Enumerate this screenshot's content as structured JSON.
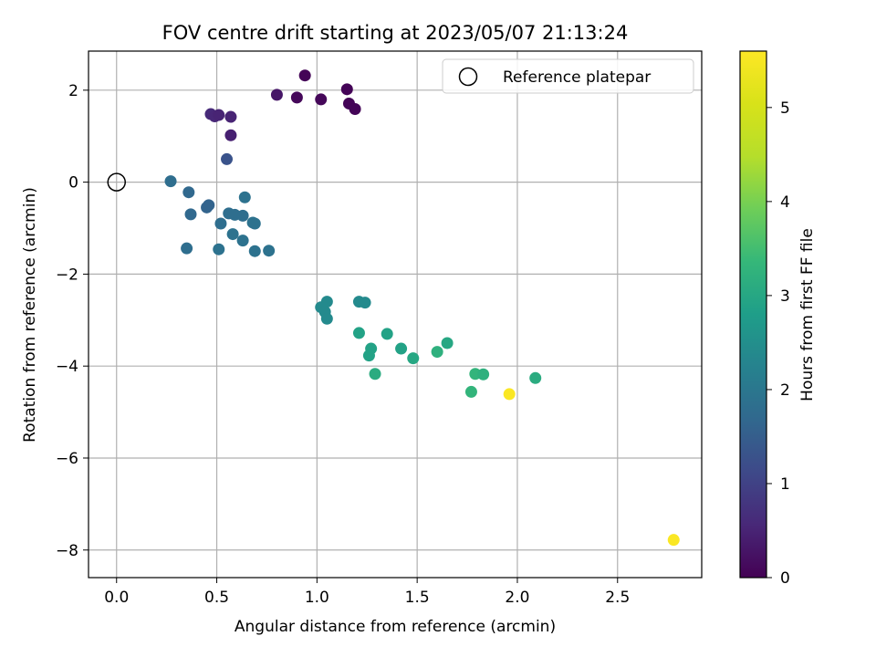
{
  "chart_data": {
    "type": "scatter",
    "title": "FOV centre drift starting at 2023/05/07 21:13:24",
    "xlabel": "Angular distance from reference (arcmin)",
    "ylabel": "Rotation from reference (arcmin)",
    "xlim": [
      -0.14,
      2.92
    ],
    "ylim": [
      -8.6,
      2.85
    ],
    "xticks": [
      0.0,
      0.5,
      1.0,
      1.5,
      2.0,
      2.5
    ],
    "xtick_labels": [
      "0.0",
      "0.5",
      "1.0",
      "1.5",
      "2.0",
      "2.5"
    ],
    "yticks": [
      2,
      0,
      -2,
      -4,
      -6,
      -8
    ],
    "ytick_labels": [
      "2",
      "0",
      "−2",
      "−4",
      "−6",
      "−8"
    ],
    "grid": true,
    "legend": {
      "entries": [
        "Reference platepar"
      ],
      "location": "upper-right"
    },
    "reference_point": {
      "x": 0.0,
      "y": 0.0
    },
    "colorbar": {
      "label": "Hours from first FF file",
      "colormap": "viridis",
      "range": [
        0,
        5.6
      ],
      "ticks": [
        0,
        1,
        2,
        3,
        4,
        5
      ],
      "tick_labels": [
        "0",
        "1",
        "2",
        "3",
        "4",
        "5"
      ]
    },
    "points": [
      {
        "x": 0.94,
        "y": 2.32,
        "c": 0.05
      },
      {
        "x": 0.8,
        "y": 1.9,
        "c": 0.3
      },
      {
        "x": 0.9,
        "y": 1.84,
        "c": 0.1
      },
      {
        "x": 1.02,
        "y": 1.8,
        "c": 0.08
      },
      {
        "x": 1.15,
        "y": 2.02,
        "c": 0.05
      },
      {
        "x": 1.16,
        "y": 1.71,
        "c": 0.05
      },
      {
        "x": 1.19,
        "y": 1.59,
        "c": 0.05
      },
      {
        "x": 0.47,
        "y": 1.48,
        "c": 0.6
      },
      {
        "x": 0.49,
        "y": 1.43,
        "c": 0.55
      },
      {
        "x": 0.51,
        "y": 1.46,
        "c": 0.5
      },
      {
        "x": 0.57,
        "y": 1.42,
        "c": 0.5
      },
      {
        "x": 0.57,
        "y": 1.02,
        "c": 0.45
      },
      {
        "x": 0.55,
        "y": 0.5,
        "c": 1.3
      },
      {
        "x": 0.27,
        "y": 0.02,
        "c": 1.8
      },
      {
        "x": 0.36,
        "y": -0.22,
        "c": 1.7
      },
      {
        "x": 0.37,
        "y": -0.7,
        "c": 1.7
      },
      {
        "x": 0.45,
        "y": -0.55,
        "c": 1.6
      },
      {
        "x": 0.46,
        "y": -0.5,
        "c": 1.6
      },
      {
        "x": 0.52,
        "y": -0.9,
        "c": 1.8
      },
      {
        "x": 0.56,
        "y": -0.68,
        "c": 1.8
      },
      {
        "x": 0.59,
        "y": -0.71,
        "c": 1.8
      },
      {
        "x": 0.58,
        "y": -1.13,
        "c": 1.9
      },
      {
        "x": 0.63,
        "y": -0.73,
        "c": 1.8
      },
      {
        "x": 0.64,
        "y": -0.33,
        "c": 1.9
      },
      {
        "x": 0.63,
        "y": -1.27,
        "c": 1.9
      },
      {
        "x": 0.68,
        "y": -0.88,
        "c": 1.9
      },
      {
        "x": 0.69,
        "y": -0.9,
        "c": 1.9
      },
      {
        "x": 0.69,
        "y": -1.5,
        "c": 1.9
      },
      {
        "x": 0.76,
        "y": -1.49,
        "c": 1.9
      },
      {
        "x": 0.35,
        "y": -1.44,
        "c": 1.8
      },
      {
        "x": 0.51,
        "y": -1.46,
        "c": 1.9
      },
      {
        "x": 1.02,
        "y": -2.72,
        "c": 2.4
      },
      {
        "x": 1.05,
        "y": -2.6,
        "c": 2.4
      },
      {
        "x": 1.04,
        "y": -2.82,
        "c": 2.4
      },
      {
        "x": 1.05,
        "y": -2.97,
        "c": 2.4
      },
      {
        "x": 1.21,
        "y": -2.6,
        "c": 2.4
      },
      {
        "x": 1.24,
        "y": -2.62,
        "c": 2.4
      },
      {
        "x": 1.21,
        "y": -3.28,
        "c": 2.9
      },
      {
        "x": 1.35,
        "y": -3.3,
        "c": 2.9
      },
      {
        "x": 1.27,
        "y": -3.62,
        "c": 2.9
      },
      {
        "x": 1.26,
        "y": -3.77,
        "c": 2.9
      },
      {
        "x": 1.42,
        "y": -3.62,
        "c": 2.9
      },
      {
        "x": 1.48,
        "y": -3.83,
        "c": 3.0
      },
      {
        "x": 1.29,
        "y": -4.17,
        "c": 3.1
      },
      {
        "x": 1.6,
        "y": -3.69,
        "c": 3.2
      },
      {
        "x": 1.65,
        "y": -3.5,
        "c": 3.0
      },
      {
        "x": 1.79,
        "y": -4.17,
        "c": 3.3
      },
      {
        "x": 1.83,
        "y": -4.18,
        "c": 3.2
      },
      {
        "x": 1.77,
        "y": -4.56,
        "c": 3.3
      },
      {
        "x": 2.09,
        "y": -4.26,
        "c": 3.1
      },
      {
        "x": 1.96,
        "y": -4.61,
        "c": 5.55
      },
      {
        "x": 2.78,
        "y": -7.78,
        "c": 5.55
      }
    ]
  }
}
